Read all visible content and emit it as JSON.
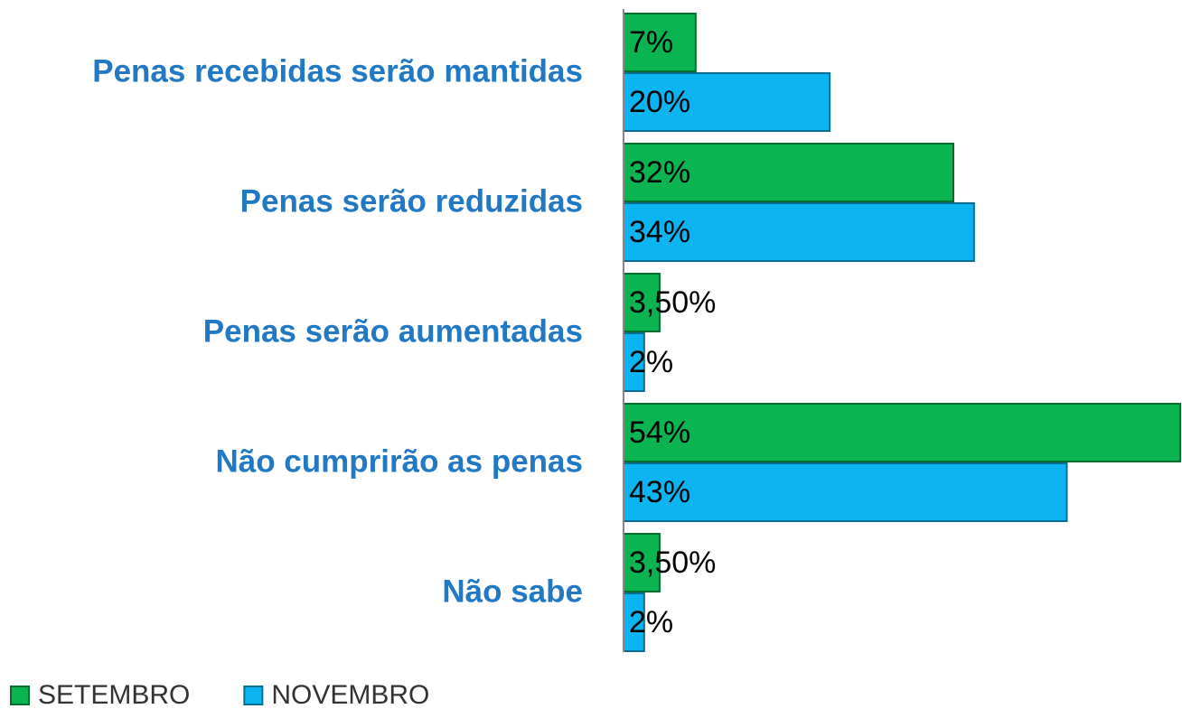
{
  "chart_data": {
    "type": "bar",
    "orientation": "horizontal",
    "categories": [
      "Penas recebidas serão mantidas",
      "Penas serão reduzidas",
      "Penas serão aumentadas",
      "Não cumprirão as penas",
      "Não sabe"
    ],
    "series": [
      {
        "name": "SETEMBRO",
        "color": "#0ab450",
        "values": [
          7,
          32,
          3.5,
          54,
          3.5
        ],
        "value_labels": [
          "7%",
          "32%",
          "3,50%",
          "54%",
          "3,50%"
        ]
      },
      {
        "name": "NOVEMBRO",
        "color": "#0cb5f2",
        "values": [
          20,
          34,
          2,
          43,
          2
        ],
        "value_labels": [
          "20%",
          "34%",
          "2%",
          "43%",
          "2%"
        ]
      }
    ],
    "xlim": [
      0,
      54
    ],
    "legend": "bottom-left"
  }
}
